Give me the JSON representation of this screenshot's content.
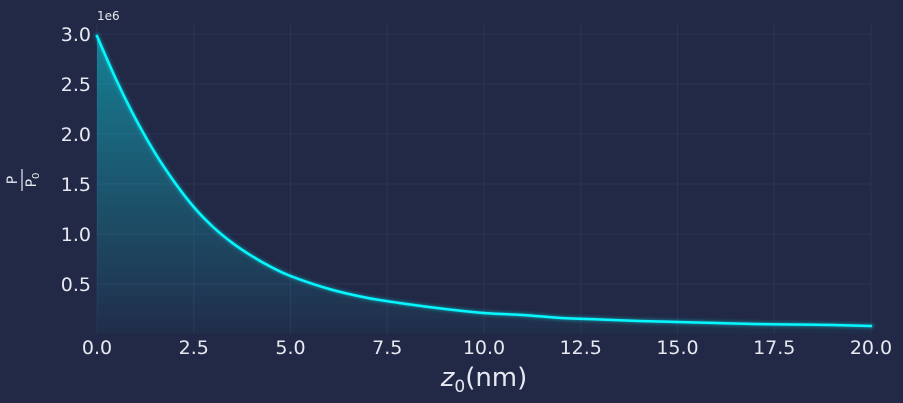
{
  "chart_data": {
    "type": "line",
    "title": "",
    "xlabel": {
      "base": "z",
      "sub": "0",
      "unit": "(nm)"
    },
    "ylabel": {
      "numerator": "P",
      "denominator": "P",
      "denominator_sub": "0"
    },
    "y_offset_text": "1e6",
    "xlim": [
      0,
      20
    ],
    "ylim": [
      0,
      3.1
    ],
    "x_ticks": [
      0,
      2.5,
      5,
      7.5,
      10,
      12.5,
      15,
      17.5,
      20
    ],
    "x_tick_labels": [
      "0.0",
      "2.5",
      "5.0",
      "7.5",
      "10.0",
      "12.5",
      "15.0",
      "17.5",
      "20.0"
    ],
    "y_ticks": [
      0.5,
      1.0,
      1.5,
      2.0,
      2.5,
      3.0
    ],
    "y_tick_labels": [
      "0.5",
      "1.0",
      "1.5",
      "2.0",
      "2.5",
      "3.0"
    ],
    "grid": true,
    "area_fill": true,
    "series": [
      {
        "x": [
          0,
          0.5,
          1,
          1.5,
          2,
          2.5,
          3,
          3.5,
          4,
          4.5,
          5,
          6,
          7,
          8,
          9,
          10,
          11,
          12,
          13,
          14,
          15,
          16,
          17,
          18,
          19,
          20
        ],
        "y": [
          2.98,
          2.54,
          2.15,
          1.81,
          1.52,
          1.27,
          1.07,
          0.91,
          0.78,
          0.67,
          0.58,
          0.45,
          0.36,
          0.3,
          0.25,
          0.21,
          0.19,
          0.16,
          0.145,
          0.13,
          0.12,
          0.11,
          0.1,
          0.095,
          0.09,
          0.08
        ]
      }
    ],
    "colors": {
      "background": "#212946",
      "line": "#08F7FE",
      "grid": "#2A3459",
      "text": "#E8E8F0"
    }
  }
}
